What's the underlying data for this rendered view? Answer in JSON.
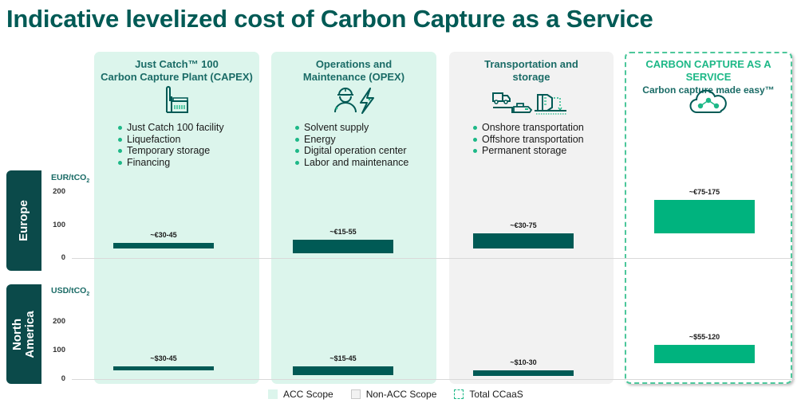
{
  "title": "Indicative levelized cost of Carbon Capture as a Service",
  "colors": {
    "dark_teal": "#005a55",
    "bar_dark": "#005a55",
    "bar_green": "#00b37e",
    "acc_bg": "#dcf5ec",
    "non_acc_bg": "#f2f2f2",
    "accent": "#1db887"
  },
  "columns": [
    {
      "heading_lines": [
        "Just Catch™ 100",
        "Carbon Capture Plant (CAPEX)"
      ],
      "icon": "factory-icon",
      "scope": "acc",
      "bullets": [
        "Just Catch 100 facility",
        "Liquefaction",
        "Temporary storage",
        "Financing"
      ]
    },
    {
      "heading_lines": [
        "Operations and",
        "Maintenance (OPEX)"
      ],
      "icon": "worker-energy-icon",
      "scope": "acc",
      "bullets": [
        "Solvent supply",
        "Energy",
        "Digital operation center",
        "Labor and maintenance"
      ]
    },
    {
      "heading_lines": [
        "Transportation and",
        "storage"
      ],
      "icon": "transport-storage-icon",
      "scope": "non-acc",
      "bullets": [
        "Onshore transportation",
        "Offshore transportation",
        "Permanent storage"
      ]
    },
    {
      "heading_lines": [
        "CARBON CAPTURE AS A SERVICE",
        "Carbon capture made easy™"
      ],
      "icon": "cloud-molecule-icon",
      "scope": "total",
      "bullets": []
    }
  ],
  "legend": [
    {
      "label": "ACC Scope",
      "style": "acc"
    },
    {
      "label": "Non-ACC Scope",
      "style": "non-acc"
    },
    {
      "label": "Total CCaaS",
      "style": "total"
    }
  ],
  "chart_data": [
    {
      "type": "bar",
      "title": "Europe",
      "ylabel": "EUR/tCO",
      "ylabel_subscript": "2",
      "ylim": [
        0,
        200
      ],
      "yticks": [
        "0",
        "100",
        "200"
      ],
      "categories": [
        "Just Catch 100 Carbon Capture Plant (CAPEX)",
        "Operations and Maintenance (OPEX)",
        "Transportation and storage",
        "Carbon Capture as a Service"
      ],
      "ranges": [
        [
          30,
          45
        ],
        [
          15,
          55
        ],
        [
          30,
          75
        ],
        [
          75,
          175
        ]
      ],
      "labels": [
        "~€30-45",
        "~€15-55",
        "~€30-75",
        "~€75-175"
      ]
    },
    {
      "type": "bar",
      "title": "North America",
      "title_lines": [
        "North",
        "America"
      ],
      "ylabel": "USD/tCO",
      "ylabel_subscript": "2",
      "ylim": [
        0,
        200
      ],
      "yticks": [
        "0",
        "100",
        "200"
      ],
      "categories": [
        "Just Catch 100 Carbon Capture Plant (CAPEX)",
        "Operations and Maintenance (OPEX)",
        "Transportation and storage",
        "Carbon Capture as a Service"
      ],
      "ranges": [
        [
          30,
          45
        ],
        [
          15,
          45
        ],
        [
          10,
          30
        ],
        [
          55,
          120
        ]
      ],
      "labels": [
        "~$30-45",
        "~$15-45",
        "~$10-30",
        "~$55-120"
      ]
    }
  ]
}
